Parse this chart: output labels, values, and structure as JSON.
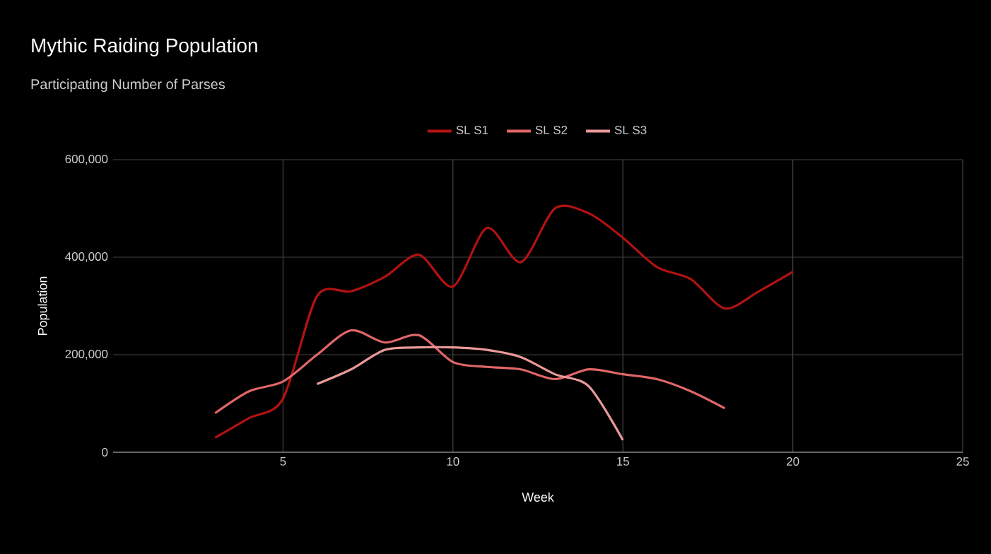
{
  "chart_data": {
    "type": "line",
    "title": "Mythic Raiding Population",
    "subtitle": "Participating Number of Parses",
    "xlabel": "Week",
    "ylabel": "Population",
    "x": [
      3,
      4,
      5,
      6,
      7,
      8,
      9,
      10,
      11,
      12,
      13,
      14,
      15,
      16,
      17,
      18,
      19,
      20
    ],
    "series": [
      {
        "name": "SL S1",
        "color": "#b31212",
        "values": [
          30000,
          70000,
          110000,
          320000,
          330000,
          360000,
          405000,
          340000,
          460000,
          390000,
          500000,
          490000,
          440000,
          380000,
          355000,
          295000,
          330000,
          370000
        ]
      },
      {
        "name": "SL S2",
        "color": "#e06666",
        "values": [
          80000,
          125000,
          145000,
          200000,
          250000,
          225000,
          240000,
          185000,
          175000,
          170000,
          150000,
          170000,
          160000,
          150000,
          125000,
          90000,
          null,
          null
        ]
      },
      {
        "name": "SL S3",
        "color": "#ea9999",
        "values": [
          null,
          null,
          null,
          140000,
          170000,
          210000,
          215000,
          215000,
          210000,
          195000,
          160000,
          135000,
          25000,
          null,
          null,
          null,
          null,
          null
        ]
      }
    ],
    "xlim": [
      0,
      25
    ],
    "xticks": [
      5,
      10,
      15,
      20,
      25
    ],
    "ylim": [
      0,
      600000
    ],
    "yticks": [
      0,
      {
        "value": 200000,
        "label": "200,000"
      },
      {
        "value": 400000,
        "label": "400,000"
      },
      {
        "value": 600000,
        "label": "600,000"
      }
    ],
    "grid": true,
    "legend": "top",
    "marker": "none",
    "line_style": "solid"
  }
}
